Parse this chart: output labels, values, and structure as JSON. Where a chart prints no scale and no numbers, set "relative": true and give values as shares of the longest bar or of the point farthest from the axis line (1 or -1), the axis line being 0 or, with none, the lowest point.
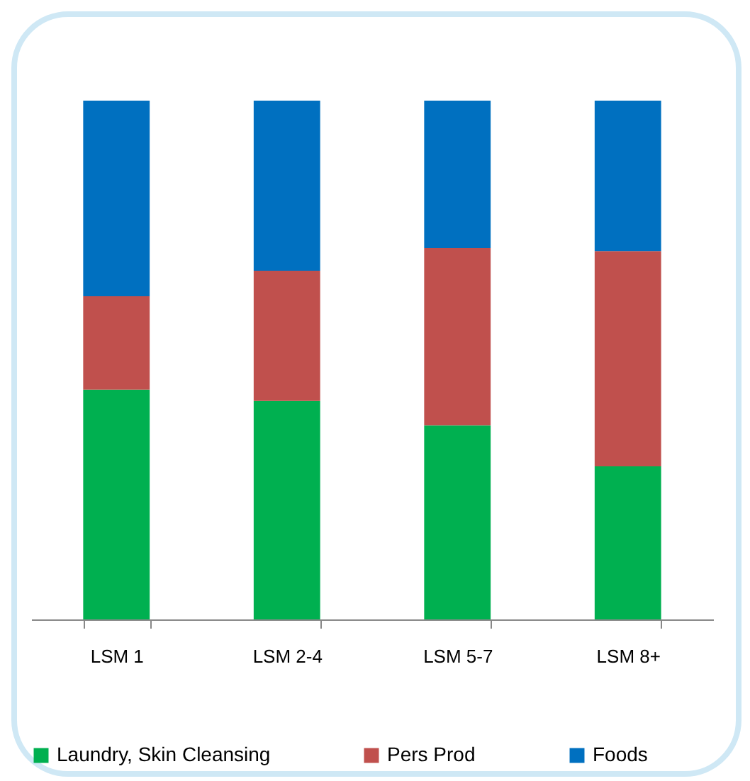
{
  "chart_data": {
    "type": "bar",
    "stacked": true,
    "relative": true,
    "categories": [
      "LSM 1",
      "LSM 2-4",
      "LSM 5-7",
      "LSM 8+"
    ],
    "series": [
      {
        "name": "Laundry, Skin Cleansing",
        "color": "#00b050",
        "values": [
          0.443,
          0.421,
          0.374,
          0.295
        ]
      },
      {
        "name": "Pers Prod",
        "color": "#c0504d",
        "values": [
          0.18,
          0.251,
          0.342,
          0.415
        ]
      },
      {
        "name": "Foods",
        "color": "#0070c0",
        "values": [
          0.377,
          0.328,
          0.284,
          0.29
        ]
      }
    ],
    "legend": "bottom"
  }
}
